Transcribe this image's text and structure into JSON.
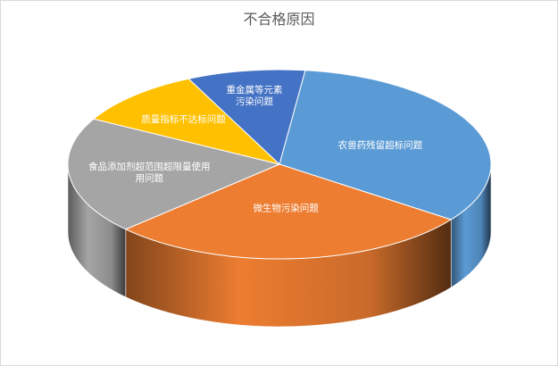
{
  "chart_data": {
    "type": "pie",
    "title": "不合格原因",
    "categories": [
      "农兽药残留超标问题",
      "微生物污染问题",
      "食品添加剂超范围超限量使用问题",
      "质量指标不达标问题",
      "重金属等元素污染问题"
    ],
    "display_labels": [
      [
        "农兽药残留超标问题"
      ],
      [
        "微生物污染问题"
      ],
      [
        "食品添加剂超范围超限量使用",
        "用问题"
      ],
      [
        "质量指标不达标问题"
      ],
      [
        "重金属等元素",
        "污染问题"
      ]
    ],
    "values": [
      33,
      28,
      20,
      10,
      9
    ],
    "colors": [
      "#5B9BD5",
      "#ED7D31",
      "#A5A5A5",
      "#FFC000",
      "#4472C4"
    ],
    "legend": "none",
    "style": "3d"
  }
}
